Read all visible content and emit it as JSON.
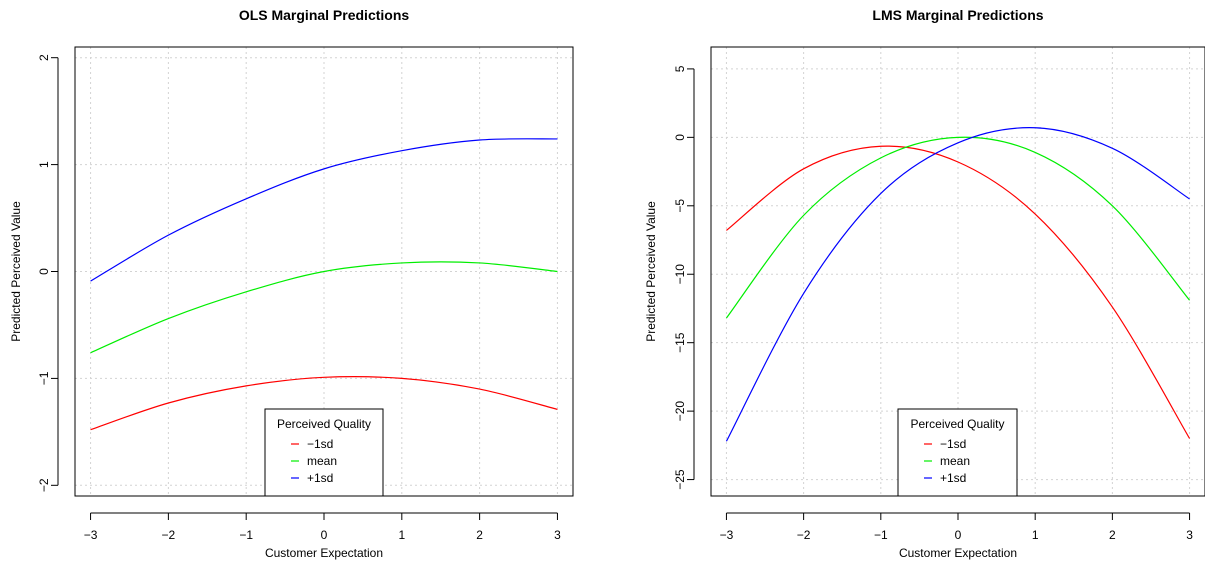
{
  "chart_data": [
    {
      "type": "line",
      "title": "OLS Marginal Predictions",
      "xlabel": "Customer Expectation",
      "ylabel": "Predicted Perceived Value",
      "xlim": [
        -3.2,
        3.2
      ],
      "ylim": [
        -2.1,
        2.1
      ],
      "xticks": [
        -3,
        -2,
        -1,
        0,
        1,
        2,
        3
      ],
      "yticks": [
        -2,
        -1,
        0,
        1,
        2
      ],
      "grid": true,
      "legend_title": "Perceived Quality",
      "legend_position": "bottom-center",
      "series": [
        {
          "name": "−1sd",
          "color": "#ff0000",
          "x": [
            -3,
            -2,
            -1,
            0,
            1,
            2,
            3
          ],
          "y": [
            -1.48,
            -1.23,
            -1.07,
            -0.99,
            -1.0,
            -1.1,
            -1.29
          ]
        },
        {
          "name": "mean",
          "color": "#00ee00",
          "x": [
            -3,
            -2,
            -1,
            0,
            1,
            2,
            3
          ],
          "y": [
            -0.76,
            -0.44,
            -0.19,
            0.0,
            0.08,
            0.08,
            0.0
          ]
        },
        {
          "name": "+1sd",
          "color": "#0000ff",
          "x": [
            -3,
            -2,
            -1,
            0,
            1,
            2,
            3
          ],
          "y": [
            -0.09,
            0.34,
            0.68,
            0.96,
            1.13,
            1.23,
            1.24
          ]
        }
      ]
    },
    {
      "type": "line",
      "title": "LMS Marginal Predictions",
      "xlabel": "Customer Expectation",
      "ylabel": "Predicted Perceived Value",
      "xlim": [
        -3.2,
        3.2
      ],
      "ylim": [
        -26.2,
        6.6
      ],
      "xticks": [
        -3,
        -2,
        -1,
        0,
        1,
        2,
        3
      ],
      "yticks": [
        -25,
        -20,
        -15,
        -10,
        -5,
        0,
        5
      ],
      "grid": true,
      "legend_title": "Perceived Quality",
      "legend_position": "bottom-center",
      "series": [
        {
          "name": "−1sd",
          "color": "#ff0000",
          "x": [
            -3,
            -2,
            -1,
            0,
            1,
            2,
            3
          ],
          "y": [
            -6.8,
            -2.3,
            -0.65,
            -1.8,
            -5.6,
            -12.4,
            -22.0
          ]
        },
        {
          "name": "mean",
          "color": "#00ee00",
          "x": [
            -3,
            -2,
            -1,
            0,
            1,
            2,
            3
          ],
          "y": [
            -13.2,
            -5.7,
            -1.5,
            0.0,
            -1.1,
            -5.0,
            -11.9
          ]
        },
        {
          "name": "+1sd",
          "color": "#0000ff",
          "x": [
            -3,
            -2,
            -1,
            0,
            1,
            2,
            3
          ],
          "y": [
            -22.2,
            -11.4,
            -4.1,
            -0.4,
            0.7,
            -0.8,
            -4.5
          ]
        }
      ]
    }
  ]
}
